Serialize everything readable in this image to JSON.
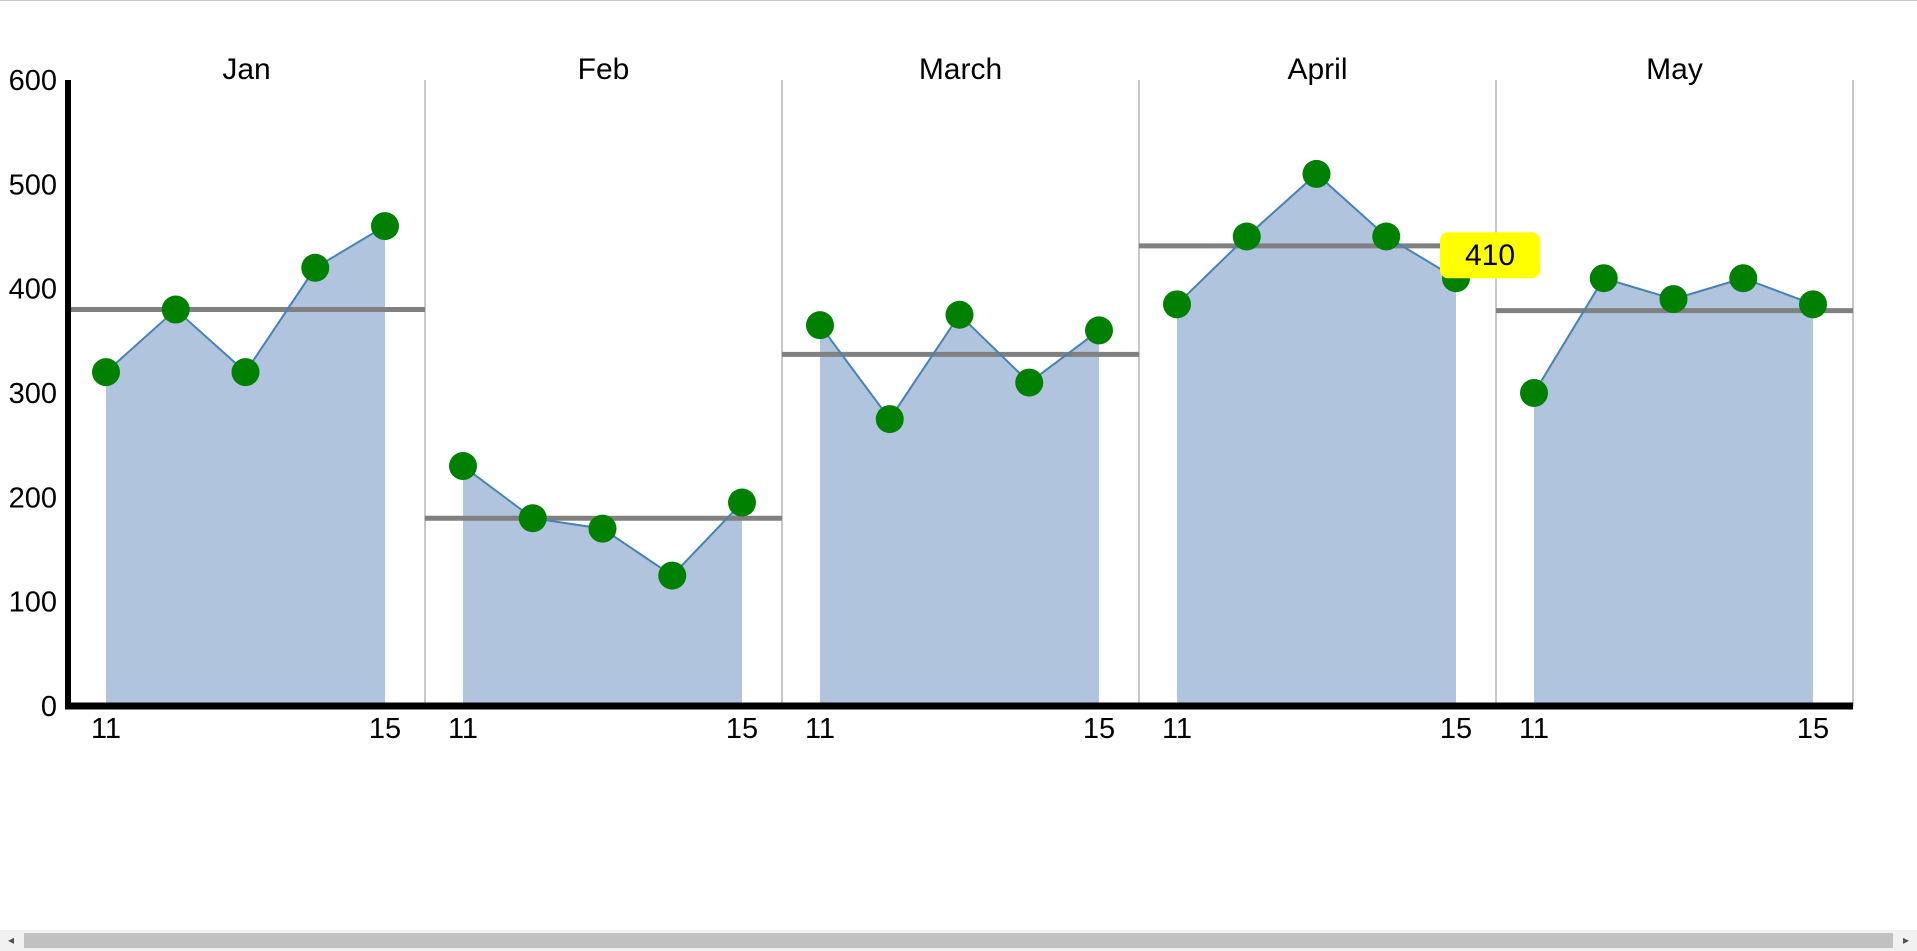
{
  "chart_data": {
    "type": "line",
    "y_ticks": [
      0,
      100,
      200,
      300,
      400,
      500,
      600
    ],
    "ylim": [
      0,
      600
    ],
    "panel_x_range": [
      11,
      15
    ],
    "panel_x_ticks": [
      11,
      15
    ],
    "panels": [
      {
        "label": "Jan",
        "x": [
          11,
          12,
          13,
          14,
          15
        ],
        "values": [
          320,
          380,
          320,
          420,
          460
        ],
        "average": 380
      },
      {
        "label": "Feb",
        "x": [
          11,
          12,
          13,
          14,
          15
        ],
        "values": [
          230,
          180,
          170,
          125,
          195
        ],
        "average": 180
      },
      {
        "label": "March",
        "x": [
          11,
          12,
          13,
          14,
          15
        ],
        "values": [
          365,
          275,
          375,
          310,
          360
        ],
        "average": 337
      },
      {
        "label": "April",
        "x": [
          11,
          12,
          13,
          14,
          15
        ],
        "values": [
          385,
          450,
          510,
          450,
          410
        ],
        "average": 441
      },
      {
        "label": "May",
        "x": [
          11,
          12,
          13,
          14,
          15
        ],
        "values": [
          300,
          410,
          390,
          410,
          385
        ],
        "average": 379
      }
    ],
    "tooltip": {
      "panel": 3,
      "point": 4,
      "text": "410"
    },
    "colors": {
      "area": "#b0c4de",
      "line": "#4682b4",
      "marker": "#008000",
      "average_line": "#808080",
      "divider": "#c8c8c8",
      "axis": "#000000",
      "tooltip_bg": "#ffff00"
    }
  },
  "ui": {
    "scrollbar": {
      "left_arrow": "◂",
      "right_arrow": "▸"
    }
  }
}
